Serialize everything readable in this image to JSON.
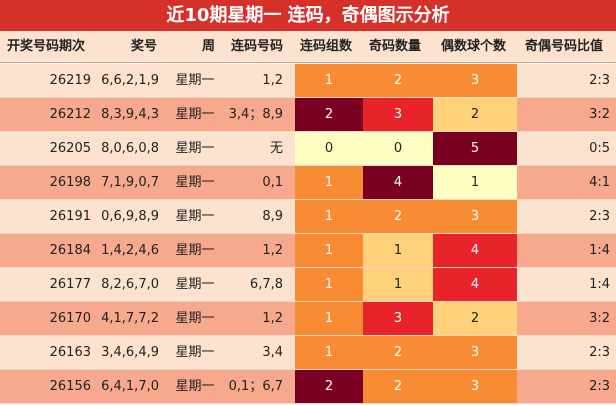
{
  "title": "近10期星期一 连码，奇偶图示分析",
  "headers": [
    "开奖号码期次",
    "奖号",
    "周",
    "连码号码",
    "连码组数",
    "奇码数量",
    "偶数球个数",
    "奇偶号码比值"
  ],
  "colors": {
    "title_bg": "#d6302b",
    "header_bg": "#fde3cf",
    "row_light": "#fde3cf",
    "row_dark": "#f6a98c",
    "orange": "#f88c34",
    "maroon": "#7a0022",
    "red": "#e8242a",
    "light_yellow": "#ffffc4",
    "tan": "#fdd27a"
  },
  "rows": [
    {
      "issue": "26219",
      "numbers": "6,6,2,1,9",
      "week": "星期一",
      "consec": "1,2",
      "groups": "1",
      "odd": "2",
      "even": "3",
      "ratio": "2:3",
      "groups_bg": "orange",
      "odd_bg": "orange",
      "even_bg": "orange"
    },
    {
      "issue": "26212",
      "numbers": "8,3,9,4,3",
      "week": "星期一",
      "consec": "3,4；8,9",
      "groups": "2",
      "odd": "3",
      "even": "2",
      "ratio": "3:2",
      "groups_bg": "maroon",
      "odd_bg": "red",
      "even_bg": "tan"
    },
    {
      "issue": "26205",
      "numbers": "8,0,6,0,8",
      "week": "星期一",
      "consec": "无",
      "groups": "0",
      "odd": "0",
      "even": "5",
      "ratio": "0:5",
      "groups_bg": "light_yellow",
      "odd_bg": "light_yellow",
      "even_bg": "maroon"
    },
    {
      "issue": "26198",
      "numbers": "7,1,9,0,7",
      "week": "星期一",
      "consec": "0,1",
      "groups": "1",
      "odd": "4",
      "even": "1",
      "ratio": "4:1",
      "groups_bg": "orange",
      "odd_bg": "maroon",
      "even_bg": "light_yellow"
    },
    {
      "issue": "26191",
      "numbers": "0,6,9,8,9",
      "week": "星期一",
      "consec": "8,9",
      "groups": "1",
      "odd": "2",
      "even": "3",
      "ratio": "2:3",
      "groups_bg": "orange",
      "odd_bg": "orange",
      "even_bg": "orange"
    },
    {
      "issue": "26184",
      "numbers": "1,4,2,4,6",
      "week": "星期一",
      "consec": "1,2",
      "groups": "1",
      "odd": "1",
      "even": "4",
      "ratio": "1:4",
      "groups_bg": "orange",
      "odd_bg": "tan",
      "even_bg": "red"
    },
    {
      "issue": "26177",
      "numbers": "8,2,6,7,0",
      "week": "星期一",
      "consec": "6,7,8",
      "groups": "1",
      "odd": "1",
      "even": "4",
      "ratio": "1:4",
      "groups_bg": "orange",
      "odd_bg": "tan",
      "even_bg": "red"
    },
    {
      "issue": "26170",
      "numbers": "4,1,7,7,2",
      "week": "星期一",
      "consec": "1,2",
      "groups": "1",
      "odd": "3",
      "even": "2",
      "ratio": "3:2",
      "groups_bg": "orange",
      "odd_bg": "red",
      "even_bg": "tan"
    },
    {
      "issue": "26163",
      "numbers": "3,4,6,4,9",
      "week": "星期一",
      "consec": "3,4",
      "groups": "1",
      "odd": "2",
      "even": "3",
      "ratio": "2:3",
      "groups_bg": "orange",
      "odd_bg": "orange",
      "even_bg": "orange"
    },
    {
      "issue": "26156",
      "numbers": "6,4,1,7,0",
      "week": "星期一",
      "consec": "0,1；6,7",
      "groups": "2",
      "odd": "2",
      "even": "3",
      "ratio": "2:3",
      "groups_bg": "maroon",
      "odd_bg": "orange",
      "even_bg": "orange"
    }
  ]
}
